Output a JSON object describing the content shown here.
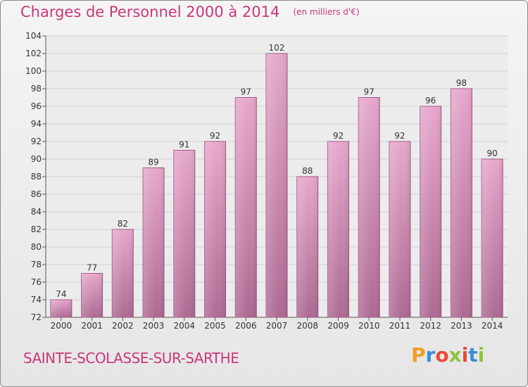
{
  "header": {
    "title": "Charges de Personnel 2000 à 2014",
    "unit_note": "(en milliers d'€)"
  },
  "footer": {
    "commune": "SAINTE-SCOLASSE-SUR-SARTHE",
    "logo_text": "Proxiti",
    "logo_letters": [
      {
        "ch": "P",
        "color": "#f0a020"
      },
      {
        "ch": "r",
        "color": "#3a8fd8"
      },
      {
        "ch": "o",
        "color": "#e84a3a"
      },
      {
        "ch": "x",
        "color": "#8cc63e"
      },
      {
        "ch": "i",
        "color": "#e84a3a"
      },
      {
        "ch": "t",
        "color": "#3a8fd8"
      },
      {
        "ch": "i",
        "color": "#8cc63e"
      }
    ]
  },
  "colors": {
    "accent": "#c8377c",
    "bar_top": "#e7a7cc",
    "bar_bottom": "#ad6a93",
    "bar_edge": "#a05a86"
  },
  "chart_data": {
    "type": "bar",
    "categories": [
      "2000",
      "2001",
      "2002",
      "2003",
      "2004",
      "2005",
      "2006",
      "2007",
      "2008",
      "2009",
      "2010",
      "2011",
      "2012",
      "2013",
      "2014"
    ],
    "values": [
      74,
      77,
      82,
      89,
      91,
      92,
      97,
      102,
      88,
      92,
      97,
      92,
      96,
      98,
      90
    ],
    "ylim": [
      72,
      104
    ],
    "yticks": [
      72,
      74,
      76,
      78,
      80,
      82,
      84,
      86,
      88,
      90,
      92,
      94,
      96,
      98,
      100,
      102,
      104
    ],
    "grid": true
  }
}
